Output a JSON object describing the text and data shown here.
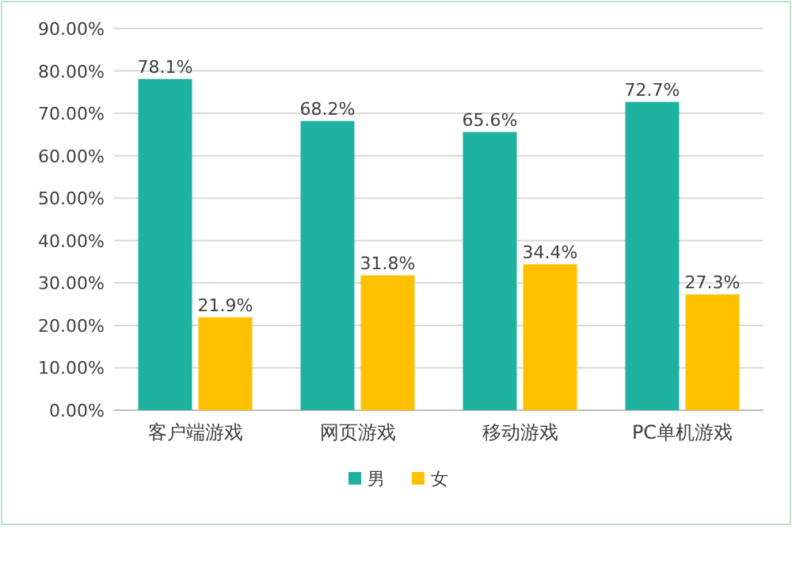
{
  "chart_data": {
    "type": "bar",
    "categories": [
      "客户端游戏",
      "网页游戏",
      "移动游戏",
      "PC单机游戏"
    ],
    "series": [
      {
        "name": "男",
        "color": "#20b2a0",
        "values": [
          78.1,
          68.2,
          65.6,
          72.7
        ],
        "value_labels": [
          "78.1%",
          "68.2%",
          "65.6%",
          "72.7%"
        ]
      },
      {
        "name": "女",
        "color": "#ffc000",
        "values": [
          21.9,
          31.8,
          34.4,
          27.3
        ],
        "value_labels": [
          "21.9%",
          "31.8%",
          "34.4%",
          "27.3%"
        ]
      }
    ],
    "ylim": [
      0,
      90
    ],
    "yticks": [
      {
        "value": 0,
        "label": "0.00%"
      },
      {
        "value": 10,
        "label": "10.00%"
      },
      {
        "value": 20,
        "label": "20.00%"
      },
      {
        "value": 30,
        "label": "30.00%"
      },
      {
        "value": 40,
        "label": "40.00%"
      },
      {
        "value": 50,
        "label": "50.00%"
      },
      {
        "value": 60,
        "label": "60.00%"
      },
      {
        "value": 70,
        "label": "70.00%"
      },
      {
        "value": 80,
        "label": "80.00%"
      },
      {
        "value": 90,
        "label": "90.00%"
      }
    ],
    "grid": "y",
    "legend": "bottom"
  }
}
